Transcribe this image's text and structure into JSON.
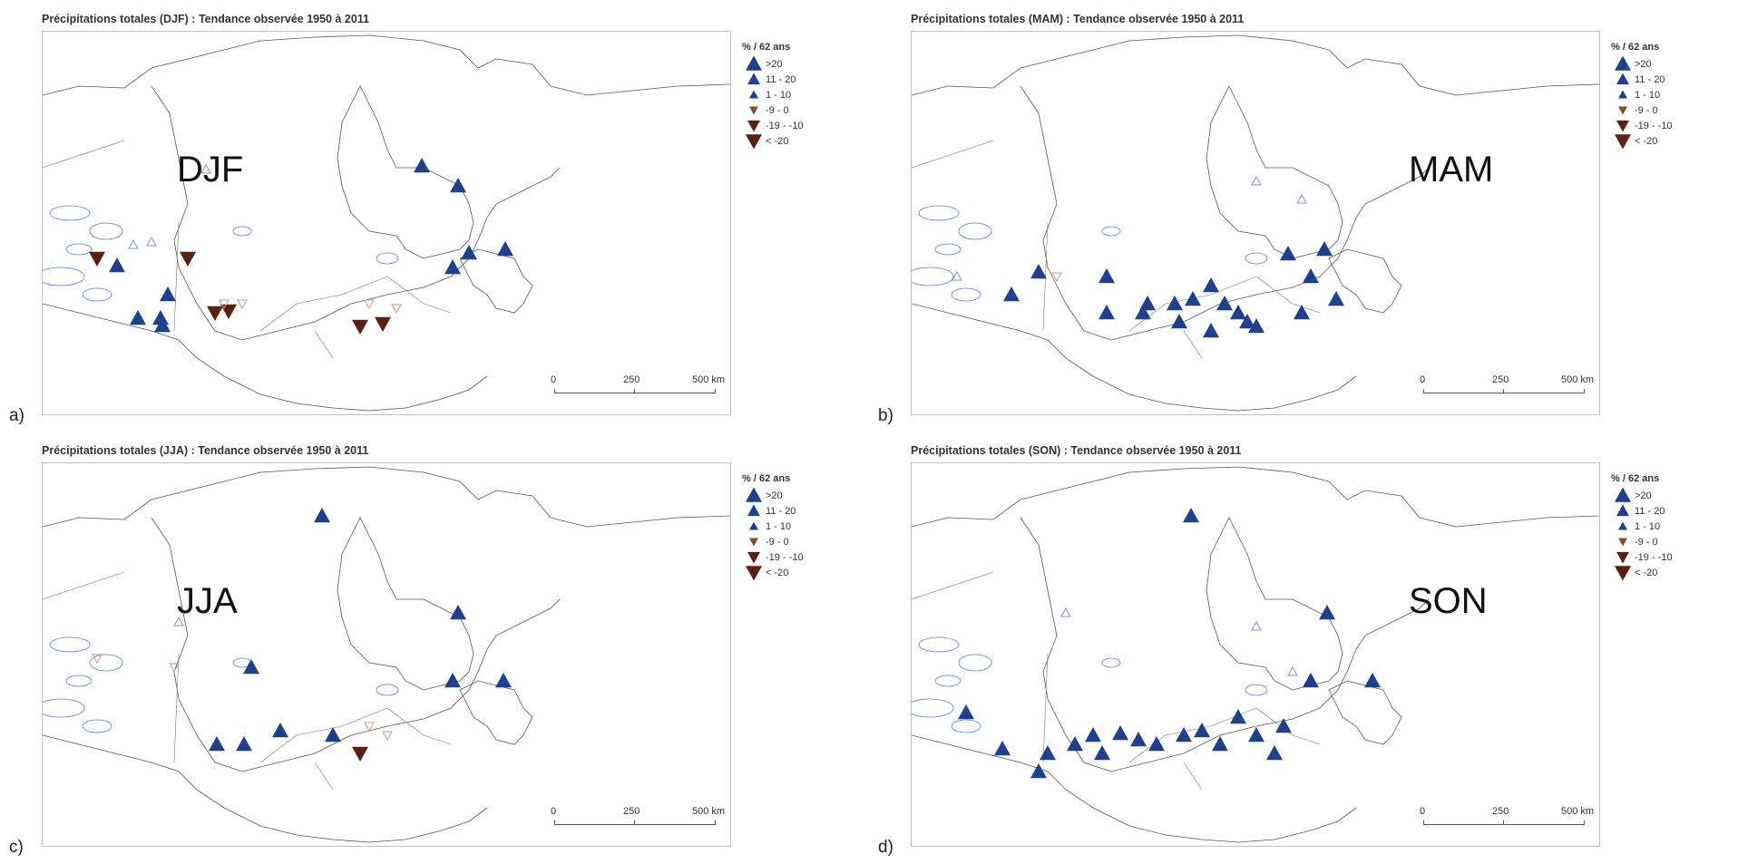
{
  "figure": {
    "panels": [
      {
        "id": "a",
        "letter": "a)",
        "title": "Précipitations totales  (DJF) : Tendance observée 1950 à 2011",
        "season_label": "DJF",
        "stations": [
          {
            "cls": ">20",
            "filled": true
          },
          {
            "cls": ">20",
            "filled": true
          },
          {
            "cls": ">20",
            "filled": true
          },
          {
            "cls": ">20",
            "filled": true
          },
          {
            "cls": ">20",
            "filled": true
          },
          {
            "cls": "11 - 20",
            "filled": true
          },
          {
            "cls": "11 - 20",
            "filled": true
          },
          {
            "cls": "11 - 20",
            "filled": true
          },
          {
            "cls": "< -20",
            "filled": true
          },
          {
            "cls": "< -20",
            "filled": true
          },
          {
            "cls": "< -20",
            "filled": true
          },
          {
            "cls": "< -20",
            "filled": true
          },
          {
            "cls": "< -20",
            "filled": true
          },
          {
            "cls": "< -20",
            "filled": true
          }
        ]
      },
      {
        "id": "b",
        "letter": "b)",
        "title": "Précipitations totales  (MAM) : Tendance observée 1950 à 2011",
        "season_label": "MAM",
        "stations": []
      },
      {
        "id": "c",
        "letter": "c)",
        "title": "Précipitations totales  (JJA) : Tendance observée 1950 à 2011",
        "season_label": "JJA",
        "stations": []
      },
      {
        "id": "d",
        "letter": "d)",
        "title": "Précipitations totales  (SON) : Tendance observée 1950 à 2011",
        "season_label": "SON",
        "stations": []
      }
    ],
    "legend": {
      "title": "% / 62 ans",
      "items": [
        {
          "label": ">20",
          "color": "#1f3f8f",
          "dir": "up",
          "size": "large"
        },
        {
          "label": "11 - 20",
          "color": "#1f3f8f",
          "dir": "up",
          "size": "medium"
        },
        {
          "label": "1 - 10",
          "color": "#1f3f8f",
          "dir": "up",
          "size": "small"
        },
        {
          "label": "-9 - 0",
          "color": "#8a4a2a",
          "dir": "down",
          "size": "small"
        },
        {
          "label": "-19 - -10",
          "color": "#5a2010",
          "dir": "down",
          "size": "medium"
        },
        {
          "label": "< -20",
          "color": "#5a2010",
          "dir": "down",
          "size": "large"
        }
      ]
    },
    "scale": {
      "labels": [
        "0",
        "250",
        "500 km"
      ]
    },
    "colors": {
      "increase": "#1f3f8f",
      "decrease": "#5a2010",
      "coast": "#555555",
      "lakes": "#5b7fd6"
    }
  }
}
